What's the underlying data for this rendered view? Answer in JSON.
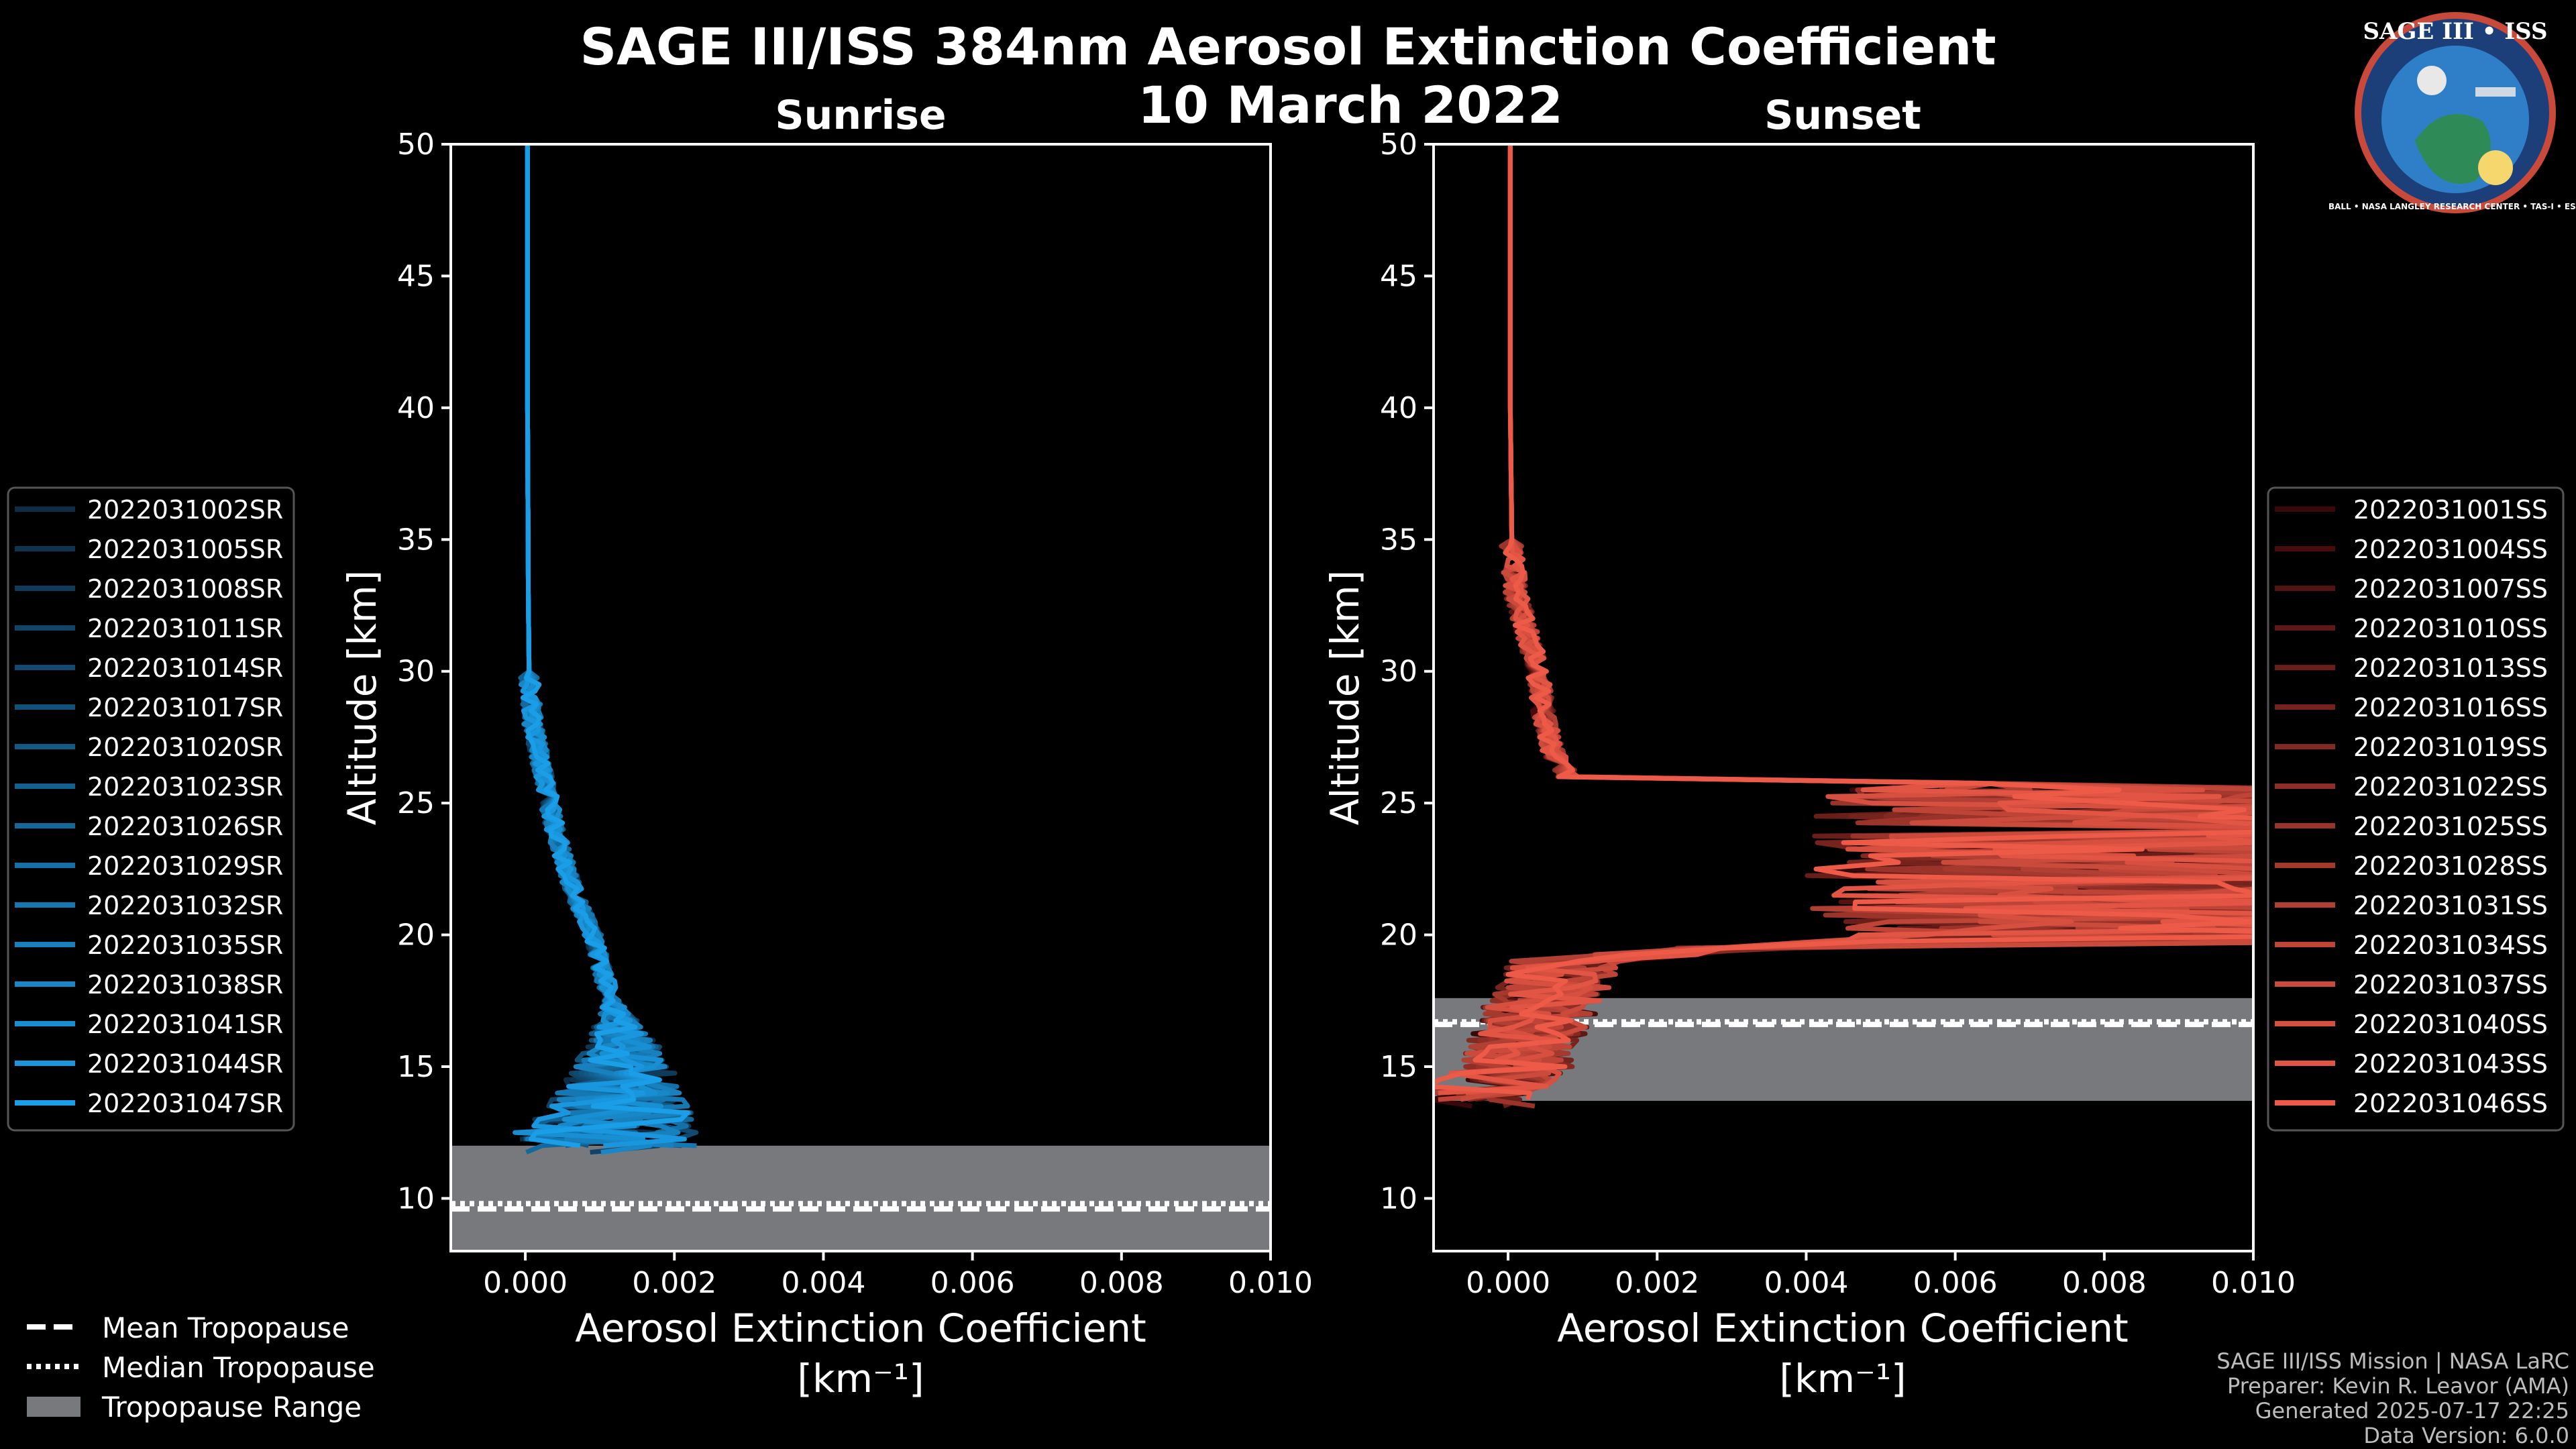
{
  "title": "SAGE III/ISS 384nm Aerosol Extinction Coefficient",
  "subtitle": "10 March 2022",
  "footer": {
    "line1": "SAGE III/ISS Mission | NASA LaRC",
    "line2": "Preparer: Kevin R. Leavor (AMA)",
    "line3": "Generated 2025-07-17 22:25",
    "line4": "Data Version: 6.0.0"
  },
  "logo": {
    "title": "SAGE III • ISS",
    "ring_text": "BALL • NASA LANGLEY RESEARCH CENTER • TAS-I • ESA",
    "colors": {
      "ring": "#1c3f7a",
      "inner": "#2f7fc8",
      "rim": "#c94a3a"
    }
  },
  "colors": {
    "sunrise_dark": "#0d2c45",
    "sunrise_light": "#1a9ee8",
    "sunset_dark": "#3a0808",
    "sunset_light": "#ee5a48",
    "tropopause_fill": "#77797c"
  },
  "chart_data": [
    {
      "type": "line",
      "panel": "left",
      "title": "Sunrise",
      "xlabel": "Aerosol Extinction Coefficient",
      "xlabel_unit": "[km⁻¹]",
      "ylabel": "Altitude [km]",
      "xlim": [
        -0.001,
        0.01
      ],
      "ylim": [
        8,
        50
      ],
      "xticks": [
        "0.000",
        "0.002",
        "0.004",
        "0.006",
        "0.008",
        "0.010"
      ],
      "yticks": [
        "10",
        "15",
        "20",
        "25",
        "30",
        "35",
        "40",
        "45",
        "50"
      ],
      "tropopause": {
        "min": 8,
        "max": 12.0,
        "mean": 9.6,
        "median": 9.8
      },
      "profile_shape": [
        [
          50,
          3e-05
        ],
        [
          40,
          3e-05
        ],
        [
          33,
          4e-05
        ],
        [
          30,
          5e-05
        ],
        [
          28,
          0.0001
        ],
        [
          26,
          0.00025
        ],
        [
          24,
          0.0004
        ],
        [
          22,
          0.0006
        ],
        [
          20,
          0.0009
        ],
        [
          18,
          0.0011
        ],
        [
          16,
          0.0013
        ],
        [
          14,
          0.0013
        ],
        [
          13,
          0.0012
        ],
        [
          12.2,
          0.001
        ]
      ],
      "series": [
        {
          "name": "2022031002SR"
        },
        {
          "name": "2022031005SR"
        },
        {
          "name": "2022031008SR"
        },
        {
          "name": "2022031011SR"
        },
        {
          "name": "2022031014SR"
        },
        {
          "name": "2022031017SR"
        },
        {
          "name": "2022031020SR"
        },
        {
          "name": "2022031023SR"
        },
        {
          "name": "2022031026SR"
        },
        {
          "name": "2022031029SR"
        },
        {
          "name": "2022031032SR"
        },
        {
          "name": "2022031035SR"
        },
        {
          "name": "2022031038SR"
        },
        {
          "name": "2022031041SR"
        },
        {
          "name": "2022031044SR"
        },
        {
          "name": "2022031047SR"
        }
      ]
    },
    {
      "type": "line",
      "panel": "right",
      "title": "Sunset",
      "xlabel": "Aerosol Extinction Coefficient",
      "xlabel_unit": "[km⁻¹]",
      "ylabel": "Altitude [km]",
      "xlim": [
        -0.001,
        0.01
      ],
      "ylim": [
        8,
        50
      ],
      "xticks": [
        "0.000",
        "0.002",
        "0.004",
        "0.006",
        "0.008",
        "0.010"
      ],
      "yticks": [
        "10",
        "15",
        "20",
        "25",
        "30",
        "35",
        "40",
        "45",
        "50"
      ],
      "tropopause": {
        "min": 13.7,
        "max": 17.6,
        "mean": 16.6,
        "median": 16.7
      },
      "profile_shape": [
        [
          50,
          3e-05
        ],
        [
          40,
          3e-05
        ],
        [
          35,
          5e-05
        ],
        [
          33,
          0.0001
        ],
        [
          30,
          0.0004
        ],
        [
          28,
          0.0005
        ],
        [
          27,
          0.0006
        ],
        [
          26,
          0.0008
        ],
        [
          25.5,
          0.012
        ],
        [
          20,
          0.012
        ],
        [
          19.5,
          0.003
        ],
        [
          19,
          0.0008
        ],
        [
          18,
          0.0006
        ],
        [
          17,
          0.0004
        ],
        [
          16,
          0.0002
        ],
        [
          15,
          0.0001
        ],
        [
          14,
          -0.0004
        ]
      ],
      "series": [
        {
          "name": "2022031001SS"
        },
        {
          "name": "2022031004SS"
        },
        {
          "name": "2022031007SS"
        },
        {
          "name": "2022031010SS"
        },
        {
          "name": "2022031013SS"
        },
        {
          "name": "2022031016SS"
        },
        {
          "name": "2022031019SS"
        },
        {
          "name": "2022031022SS"
        },
        {
          "name": "2022031025SS"
        },
        {
          "name": "2022031028SS"
        },
        {
          "name": "2022031031SS"
        },
        {
          "name": "2022031034SS"
        },
        {
          "name": "2022031037SS"
        },
        {
          "name": "2022031040SS"
        },
        {
          "name": "2022031043SS"
        },
        {
          "name": "2022031046SS"
        }
      ]
    }
  ],
  "tropopause_legend": {
    "mean": "Mean Tropopause",
    "median": "Median Tropopause",
    "range": "Tropopause Range"
  }
}
